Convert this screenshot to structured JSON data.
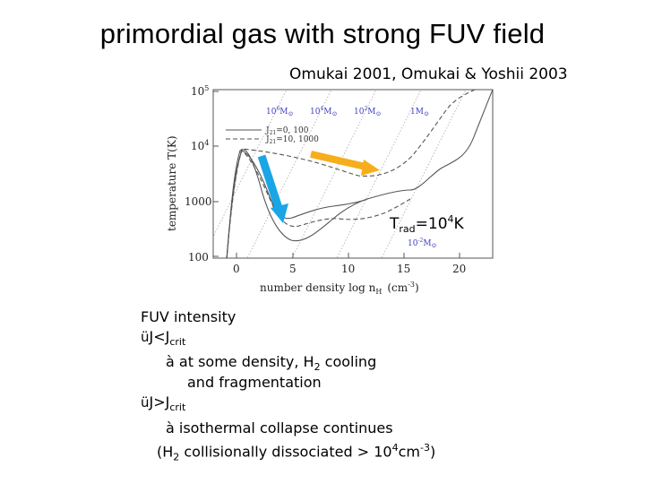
{
  "title": "primordial gas with strong FUV field",
  "reference": "Omukai 2001, Omukai & Yoshii 2003",
  "plot": {
    "y_axis_label": "temperature T(K)",
    "x_axis_label": "number density log n",
    "x_axis_sub": "H",
    "x_axis_unit": "(cm",
    "x_axis_unit_sup": "-3",
    "x_axis_unit_end": ")",
    "y_ticks": [
      {
        "base": "10",
        "exp": "5"
      },
      {
        "base": "10",
        "exp": "4"
      },
      {
        "base": "1000",
        "exp": ""
      },
      {
        "base": "100",
        "exp": ""
      }
    ],
    "x_ticks": [
      "0",
      "5",
      "10",
      "15",
      "20"
    ],
    "mass_labels": [
      {
        "base": "10",
        "exp": "6",
        "unit": "M",
        "sun": "⊙"
      },
      {
        "base": "10",
        "exp": "4",
        "unit": "M",
        "sun": "⊙"
      },
      {
        "base": "10",
        "exp": "2",
        "unit": "M",
        "sun": "⊙"
      },
      {
        "base": "1",
        "exp": "",
        "unit": "M",
        "sun": "⊙"
      },
      {
        "base": "10",
        "exp": "-2",
        "unit": "M",
        "sun": "⊙"
      }
    ],
    "legend": [
      {
        "j": "J",
        "sub": "21",
        "text": "=0, 100",
        "style": "solid"
      },
      {
        "j": "J",
        "sub": "21",
        "text": "=10, 1000",
        "style": "dashed"
      }
    ],
    "trad_base": "T",
    "trad_sub": "rad",
    "trad_eq": "=10",
    "trad_sup": "4",
    "trad_unit": "K",
    "colors": {
      "arrow_orange": "#f6ae1c",
      "arrow_blue": "#1aa6e6",
      "mass_label": "#4040c0"
    }
  },
  "notes": {
    "heading": "FUV intensity",
    "item1_check": "ü",
    "item1_j": "J<J",
    "item1_sub": "crit",
    "item1_arrow": "à",
    "item1_line1a": " at some density, H",
    "item1_line1_sub": "2",
    "item1_line1b": " cooling",
    "item1_line2": "and fragmentation",
    "item2_check": "ü",
    "item2_j": "J>J",
    "item2_sub": "crit",
    "item2_arrow": "à",
    "item2_line1": " isothermal collapse continues",
    "item2_line2a": "(H",
    "item2_line2_sub": "2",
    "item2_line2b": " collisionally dissociated > 10",
    "item2_line2_sup": "4",
    "item2_line2c": "cm",
    "item2_line2_sup2": "-3",
    "item2_line2d": ")"
  }
}
